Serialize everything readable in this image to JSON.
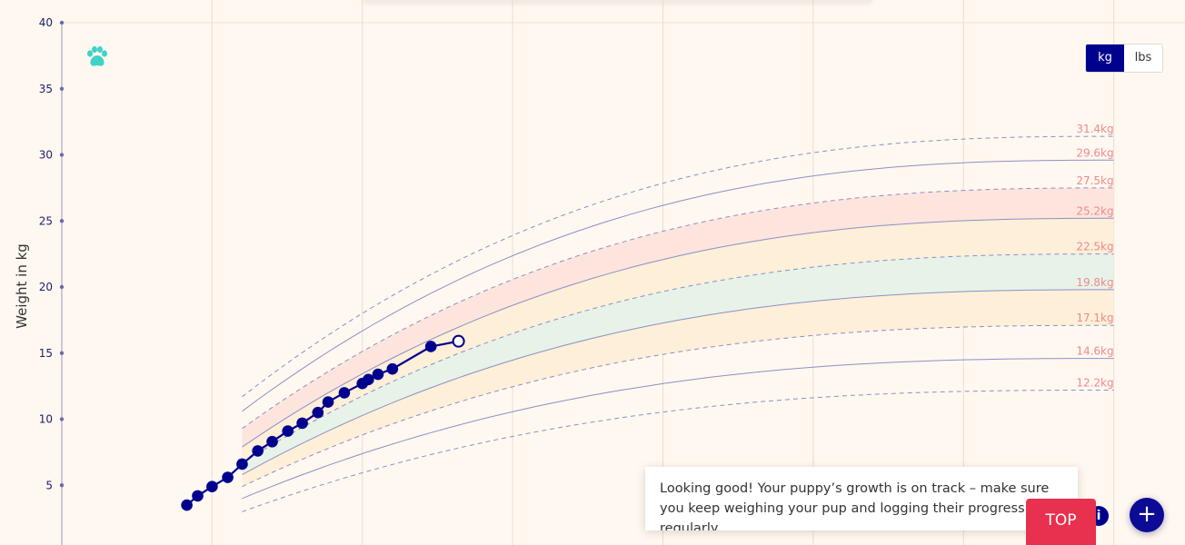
{
  "units": {
    "kg_label": "kg",
    "lbs_label": "lbs",
    "selected": "kg"
  },
  "message": "Looking good! Your puppy’s growth is on track – make sure you keep weighing your pup and logging their progress regularly.",
  "buttons": {
    "info": "i",
    "top": "TOP",
    "add": "+"
  },
  "icons": {
    "paw": "paw-icon",
    "info": "info-icon",
    "add": "plus-icon"
  },
  "colors": {
    "accent": "#00008f",
    "top_button": "#e8304f",
    "band_red": "#fde5dd",
    "band_yellow": "#fdefd8",
    "band_green": "#e7f3e8",
    "percentile_label": "#ee8a8f"
  },
  "chart_data": {
    "type": "line",
    "ylabel": "Weight in kg",
    "xlabel": "",
    "ylim": [
      0,
      40
    ],
    "xlim": [
      0,
      17.5
    ],
    "y_ticks": [
      5,
      10,
      15,
      20,
      25,
      30,
      35,
      40
    ],
    "grid": true,
    "percentile_curves": [
      {
        "label": "31.4kg",
        "start": 11.7,
        "end": 31.4,
        "style": "dashed"
      },
      {
        "label": "29.6kg",
        "start": 10.6,
        "end": 29.6,
        "style": "solid"
      },
      {
        "label": "27.5kg",
        "start": 9.3,
        "end": 27.5,
        "style": "dashed"
      },
      {
        "label": "25.2kg",
        "start": 7.9,
        "end": 25.2,
        "style": "solid"
      },
      {
        "label": "22.5kg",
        "start": 6.7,
        "end": 22.5,
        "style": "dashed"
      },
      {
        "label": "19.8kg",
        "start": 5.8,
        "end": 19.8,
        "style": "solid"
      },
      {
        "label": "17.1kg",
        "start": 4.9,
        "end": 17.1,
        "style": "dashed"
      },
      {
        "label": "14.6kg",
        "start": 4.0,
        "end": 14.6,
        "style": "solid"
      },
      {
        "label": "12.2kg",
        "start": 3.0,
        "end": 12.2,
        "style": "dashed"
      }
    ],
    "bands": [
      {
        "between": [
          "27.5kg",
          "25.2kg"
        ],
        "color": "#fde5dd"
      },
      {
        "between": [
          "25.2kg",
          "22.5kg"
        ],
        "color": "#fdefd8"
      },
      {
        "between": [
          "22.5kg",
          "19.8kg"
        ],
        "color": "#e7f3e8"
      },
      {
        "between": [
          "19.8kg",
          "17.1kg"
        ],
        "color": "#fdefd8"
      }
    ],
    "series": [
      {
        "x": [
          2.08,
          2.26,
          2.5,
          2.76,
          3.0,
          3.26,
          3.5,
          3.76,
          4.0,
          4.26,
          4.43,
          4.7,
          5.0,
          5.1,
          5.26,
          5.5,
          6.14,
          6.6
        ],
        "y": [
          3.5,
          4.2,
          4.9,
          5.6,
          6.6,
          7.6,
          8.3,
          9.1,
          9.7,
          10.5,
          11.3,
          12.0,
          12.7,
          13.0,
          13.4,
          13.8,
          15.5,
          15.9
        ]
      }
    ]
  }
}
